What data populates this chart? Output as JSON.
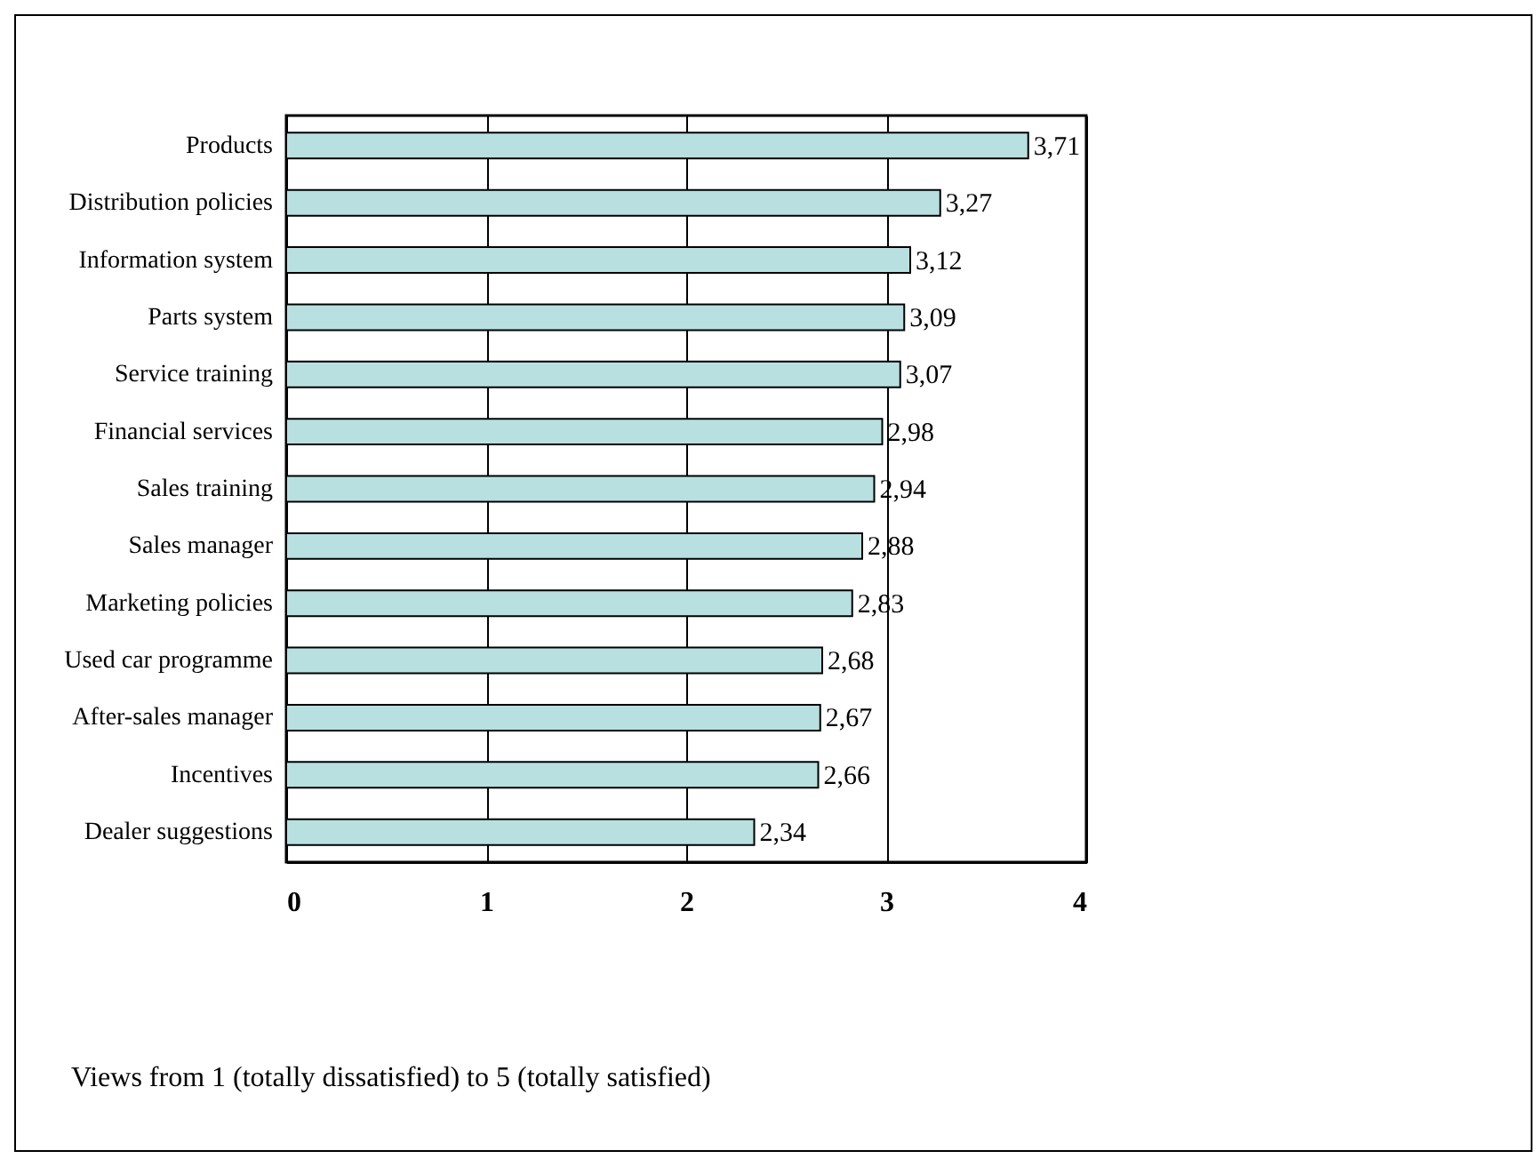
{
  "chart_data": {
    "type": "bar",
    "orientation": "horizontal",
    "categories": [
      "Products",
      "Distribution policies",
      "Information system",
      "Parts system",
      "Service training",
      "Financial services",
      "Sales training",
      "Sales manager",
      "Marketing policies",
      "Used car programme",
      "After-sales manager",
      "Incentives",
      "Dealer suggestions"
    ],
    "values": [
      3.71,
      3.27,
      3.12,
      3.09,
      3.07,
      2.98,
      2.94,
      2.88,
      2.83,
      2.68,
      2.67,
      2.66,
      2.34
    ],
    "value_labels": [
      "3,71",
      "3,27",
      "3,12",
      "3,09",
      "3,07",
      "2,98",
      "2,94",
      "2,88",
      "2,83",
      "2,68",
      "2,67",
      "2,66",
      "2,34"
    ],
    "color": "#b9e0e1",
    "xlim": [
      0,
      4
    ],
    "xticks": [
      0,
      1,
      2,
      3,
      4
    ],
    "grid": "x",
    "annotations": [
      "Views from 1 (totally dissatisfied) to 5 (totally satisfied)"
    ]
  }
}
